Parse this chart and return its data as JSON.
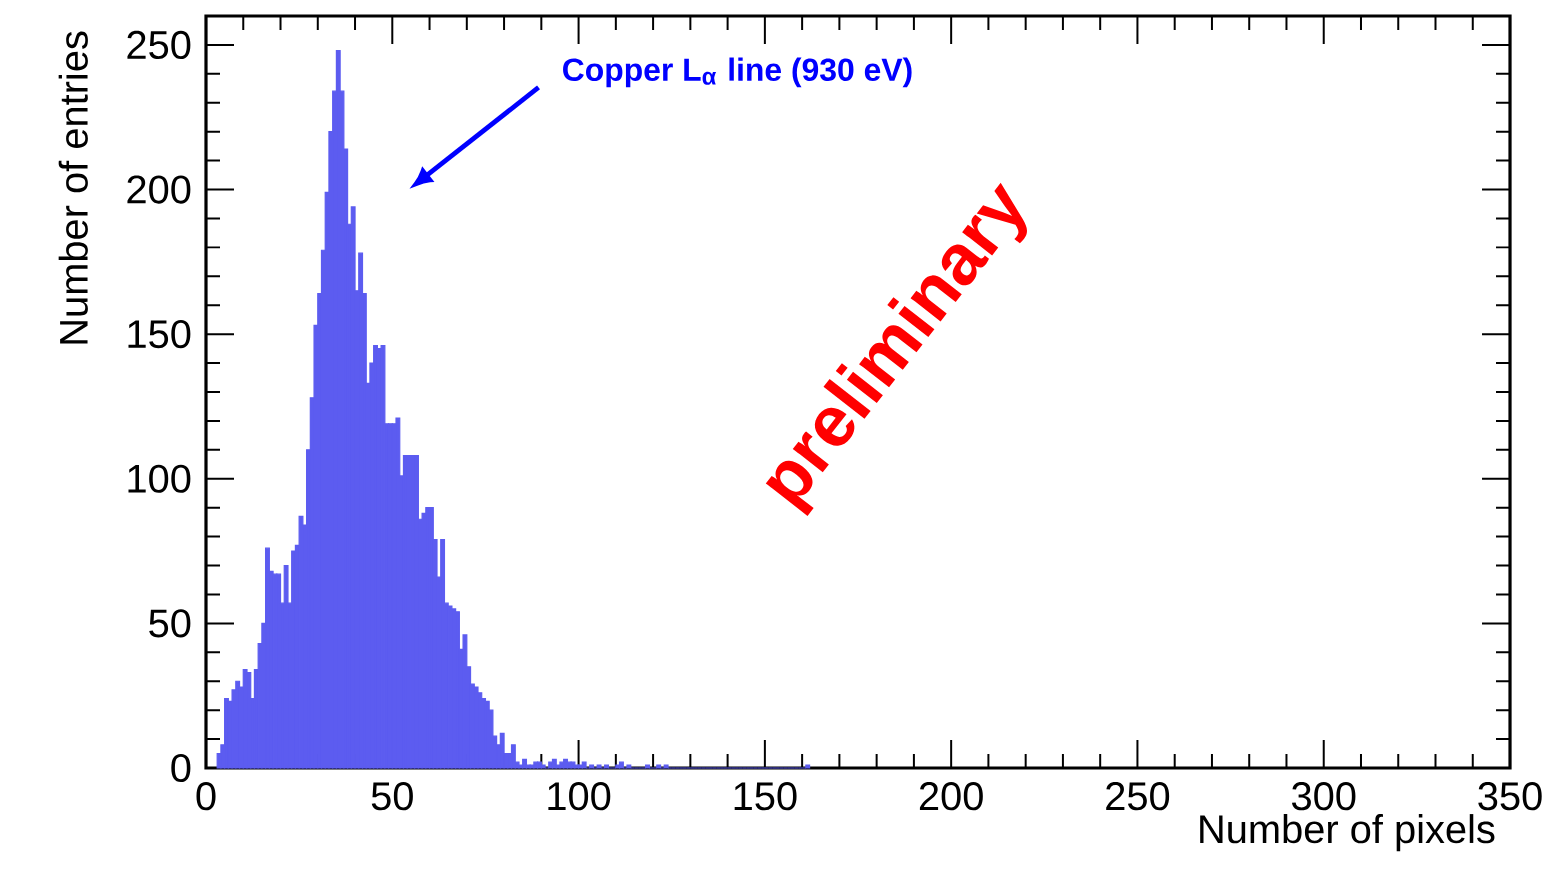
{
  "chart_data": {
    "type": "histogram",
    "xlabel": "Number of pixels",
    "ylabel": "Number of entries",
    "bins": [
      3,
      4,
      5,
      6,
      7,
      8,
      9,
      10,
      11,
      12,
      13,
      14,
      15,
      16,
      17,
      18,
      19,
      20,
      21,
      22,
      23,
      24,
      25,
      26,
      27,
      28,
      29,
      30,
      31,
      32,
      33,
      34,
      35,
      36,
      37,
      38,
      39,
      40,
      41,
      42,
      43,
      44,
      45,
      46,
      47,
      48,
      49,
      50,
      51,
      52,
      53,
      54,
      55,
      56,
      57,
      58,
      59,
      60,
      61,
      62,
      63,
      64,
      65,
      66,
      67,
      68,
      69,
      70,
      71,
      72,
      73,
      74,
      75,
      76,
      77,
      78,
      79,
      80,
      81,
      82,
      83,
      84,
      85,
      86,
      87,
      88,
      89,
      90,
      91,
      92,
      93,
      94,
      95,
      96,
      97,
      98,
      99,
      100,
      101,
      102,
      103,
      104,
      105,
      106,
      107,
      108,
      109,
      110,
      111,
      112,
      113,
      114,
      115,
      116,
      117,
      118,
      119,
      120,
      121,
      122,
      123,
      124,
      125,
      126,
      127,
      128,
      129,
      130,
      131,
      132,
      133,
      134,
      135,
      136,
      137,
      138,
      139,
      140,
      141,
      142,
      143,
      144,
      145,
      146,
      147,
      148,
      149,
      150,
      151,
      152,
      153,
      154,
      155,
      156,
      157,
      158,
      159,
      160,
      161,
      162
    ],
    "values": [
      5,
      8,
      24,
      23,
      27,
      30,
      28,
      34,
      33,
      24,
      34,
      43,
      50,
      76,
      68,
      67,
      67,
      57,
      70,
      57,
      75,
      77,
      87,
      84,
      110,
      128,
      153,
      164,
      179,
      199,
      220,
      234,
      248,
      234,
      214,
      188,
      194,
      165,
      178,
      164,
      133,
      140,
      146,
      145,
      146,
      119,
      119,
      119,
      121,
      101,
      108,
      108,
      108,
      108,
      86,
      88,
      90,
      90,
      79,
      66,
      79,
      57,
      56,
      55,
      54,
      41,
      46,
      35,
      29,
      28,
      26,
      24,
      23,
      20,
      11,
      8,
      12,
      5,
      5,
      8,
      2,
      1,
      3,
      1,
      1,
      2,
      2,
      1,
      0,
      2,
      3,
      1,
      2,
      3,
      2,
      2,
      1,
      1,
      2,
      0,
      1,
      0,
      1,
      0,
      1,
      0,
      0,
      1,
      2,
      0,
      1,
      0,
      0,
      0,
      0,
      1,
      0,
      0,
      1,
      0,
      1,
      0,
      0,
      0,
      0,
      0,
      0,
      0,
      0,
      0,
      0,
      0,
      0,
      0,
      0,
      0,
      0,
      0,
      0,
      0,
      0,
      0,
      0,
      0,
      0,
      0,
      0,
      0,
      0,
      0,
      0,
      0,
      0,
      0,
      0,
      0,
      0,
      0,
      1
    ],
    "color": "#5c5cf0",
    "xlim": [
      0,
      350
    ],
    "ylim": [
      0,
      260
    ],
    "xticks": [
      0,
      50,
      100,
      150,
      200,
      250,
      300,
      350
    ],
    "yticks": [
      0,
      50,
      100,
      150,
      200,
      250
    ],
    "grid": false,
    "annotations": [
      "Copper L$_{α}$ line (930 eV)",
      "preliminary"
    ]
  }
}
